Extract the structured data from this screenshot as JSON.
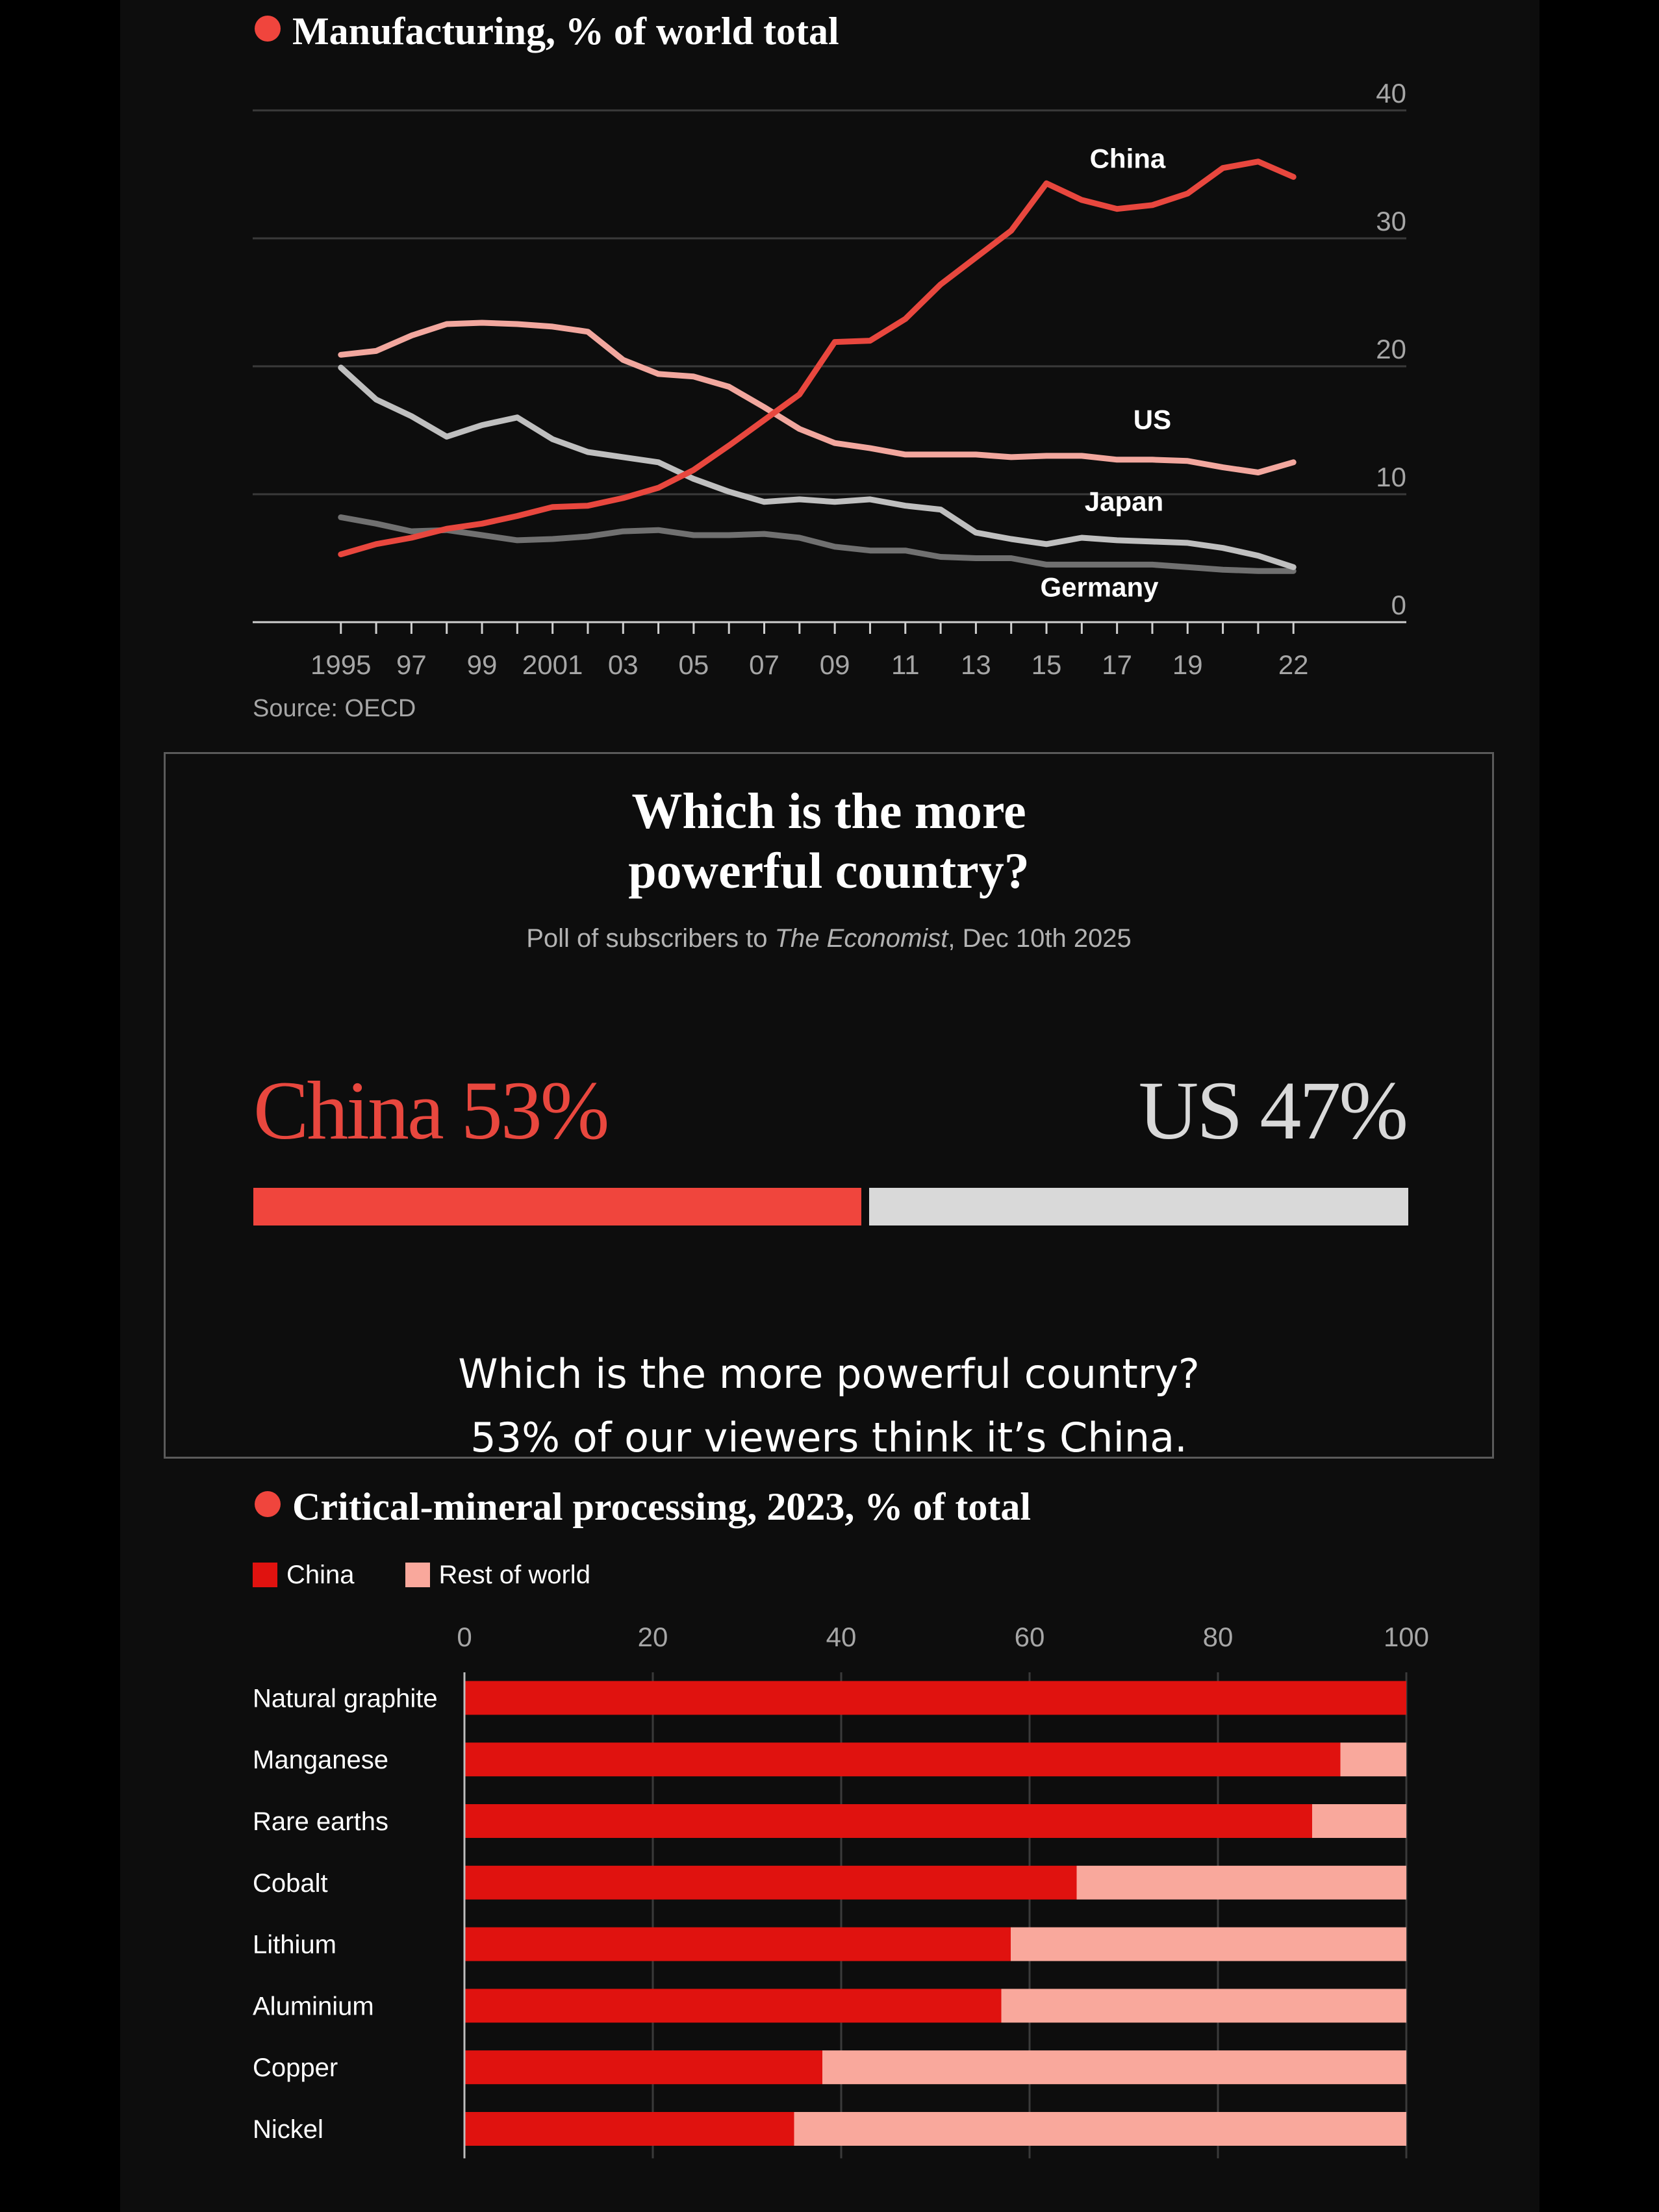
{
  "colors": {
    "china": "#e8473e",
    "us": "#f2a79e",
    "japan": "#bfbfbf",
    "germany": "#707070",
    "bar_china": "#e0120f",
    "bar_rest": "#f9a89c",
    "poll_us": "#d9d9d9",
    "accent_dot": "#f0453d"
  },
  "manufacturing": {
    "title": "Manufacturing, % of world total",
    "source": "Source: OECD",
    "chart_data": {
      "type": "line",
      "title": "Manufacturing, % of world total",
      "x": [
        1995,
        1996,
        1997,
        1998,
        1999,
        2000,
        2001,
        2002,
        2003,
        2004,
        2005,
        2006,
        2007,
        2008,
        2009,
        2010,
        2011,
        2012,
        2013,
        2014,
        2015,
        2016,
        2017,
        2018,
        2019,
        2020,
        2021,
        2022
      ],
      "xticks": [
        {
          "value": 1995,
          "label": "1995"
        },
        {
          "value": 1997,
          "label": "97"
        },
        {
          "value": 1999,
          "label": "99"
        },
        {
          "value": 2001,
          "label": "2001"
        },
        {
          "value": 2003,
          "label": "03"
        },
        {
          "value": 2005,
          "label": "05"
        },
        {
          "value": 2007,
          "label": "07"
        },
        {
          "value": 2009,
          "label": "09"
        },
        {
          "value": 2011,
          "label": "11"
        },
        {
          "value": 2013,
          "label": "13"
        },
        {
          "value": 2015,
          "label": "15"
        },
        {
          "value": 2017,
          "label": "17"
        },
        {
          "value": 2019,
          "label": "19"
        },
        {
          "value": 2022,
          "label": "22"
        }
      ],
      "yticks": [
        0,
        10,
        20,
        30,
        40
      ],
      "ylim": [
        0,
        40
      ],
      "xlim": [
        1992.5,
        2025.2
      ],
      "y_axis_side": "right",
      "grid": true,
      "series": [
        {
          "name": "China",
          "color_key": "china",
          "label_at": [
            2017.3,
            35.5
          ],
          "values": [
            5.3,
            6.1,
            6.6,
            7.3,
            7.7,
            8.3,
            9.0,
            9.1,
            9.7,
            10.5,
            11.9,
            13.8,
            15.8,
            17.8,
            21.9,
            22.0,
            23.7,
            26.4,
            28.5,
            30.6,
            34.3,
            33.0,
            32.3,
            32.6,
            33.5,
            35.5,
            36.0,
            34.8
          ]
        },
        {
          "name": "US",
          "color_key": "us",
          "label_at": [
            2018.0,
            15.1
          ],
          "values": [
            20.9,
            21.2,
            22.4,
            23.3,
            23.4,
            23.3,
            23.1,
            22.7,
            20.5,
            19.4,
            19.2,
            18.4,
            16.8,
            15.1,
            14.0,
            13.6,
            13.1,
            13.1,
            13.1,
            12.9,
            13.0,
            13.0,
            12.7,
            12.7,
            12.6,
            12.1,
            11.7,
            12.5
          ]
        },
        {
          "name": "Japan",
          "color_key": "japan",
          "label_at": [
            2017.2,
            8.7
          ],
          "values": [
            19.9,
            17.4,
            16.1,
            14.5,
            15.4,
            16.0,
            14.3,
            13.3,
            12.9,
            12.5,
            11.2,
            10.2,
            9.4,
            9.6,
            9.4,
            9.6,
            9.1,
            8.8,
            7.0,
            6.5,
            6.1,
            6.6,
            6.4,
            6.3,
            6.2,
            5.8,
            5.2,
            4.3
          ]
        },
        {
          "name": "Germany",
          "color_key": "germany",
          "label_at": [
            2016.5,
            2.0
          ],
          "values": [
            8.2,
            7.7,
            7.1,
            7.2,
            6.8,
            6.4,
            6.5,
            6.7,
            7.1,
            7.2,
            6.8,
            6.8,
            6.9,
            6.6,
            5.9,
            5.6,
            5.6,
            5.1,
            5.0,
            5.0,
            4.5,
            4.5,
            4.5,
            4.5,
            4.3,
            4.1,
            4.0,
            4.0
          ]
        }
      ]
    }
  },
  "poll": {
    "heading_line1": "Which is the more",
    "heading_line2": "powerful country?",
    "sub_prefix": "Poll of subscribers to ",
    "sub_publication": "The Economist",
    "sub_suffix": ", Dec 10th 2025",
    "china_label": "China 53%",
    "us_label": "US 47%",
    "china_share": 53,
    "us_share": 47,
    "caption_line1": "Which is the more powerful country?",
    "caption_line2": "53% of our viewers think it’s China."
  },
  "minerals": {
    "title": "Critical-mineral processing, 2023, % of total",
    "legend": {
      "china": "China",
      "rest": "Rest of world"
    },
    "chart_data": {
      "type": "bar",
      "orientation": "horizontal",
      "stacked": true,
      "title": "Critical-mineral processing, 2023, % of total",
      "categories": [
        "Natural graphite",
        "Manganese",
        "Rare earths",
        "Cobalt",
        "Lithium",
        "Aluminium",
        "Copper",
        "Nickel"
      ],
      "xticks": [
        0,
        20,
        40,
        60,
        80,
        100
      ],
      "xlim": [
        0,
        100
      ],
      "grid": true,
      "legend_position": "top-left",
      "series": [
        {
          "name": "China",
          "color_key": "bar_china",
          "values": [
            100,
            93,
            90,
            65,
            58,
            57,
            38,
            35
          ]
        },
        {
          "name": "Rest of world",
          "color_key": "bar_rest",
          "values": [
            0,
            7,
            10,
            35,
            42,
            43,
            62,
            65
          ]
        }
      ]
    }
  }
}
